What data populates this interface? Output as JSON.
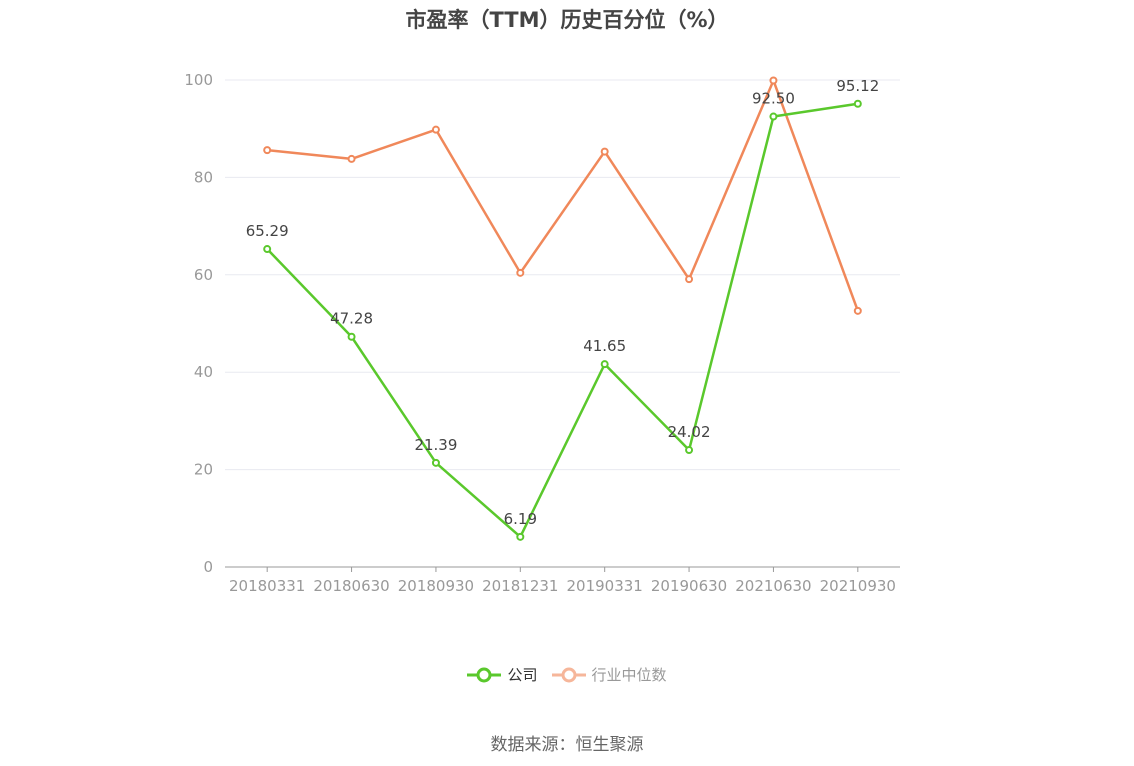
{
  "title": "市盈率（TTM）历史百分位（%）",
  "source": "数据来源：恒生聚源",
  "colors": {
    "company": "#5ac82c",
    "industry": "#f0885a",
    "industry_legend": "#f6b69a",
    "grid": "#e8eaf0",
    "axis": "#999999"
  },
  "chart_data": {
    "type": "line",
    "title": "市盈率（TTM）历史百分位（%）",
    "xlabel": "",
    "ylabel": "",
    "ylim": [
      0,
      100
    ],
    "yticks": [
      0,
      20,
      40,
      60,
      80,
      100
    ],
    "categories": [
      "20180331",
      "20180630",
      "20180930",
      "20181231",
      "20190331",
      "20190630",
      "20210630",
      "20210930"
    ],
    "grid": true,
    "legend_position": "bottom-center",
    "series": [
      {
        "name": "公司",
        "values": [
          65.29,
          47.28,
          21.39,
          6.19,
          41.65,
          24.02,
          92.5,
          95.12
        ],
        "labels": [
          "65.29",
          "47.28",
          "21.39",
          "6.19",
          "41.65",
          "24.02",
          "92.50",
          "95.12"
        ]
      },
      {
        "name": "行业中位数",
        "values": [
          85.6,
          83.8,
          89.8,
          60.4,
          85.3,
          59.1,
          99.9,
          52.6
        ]
      }
    ]
  }
}
